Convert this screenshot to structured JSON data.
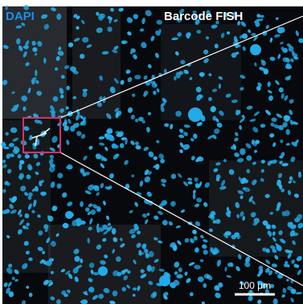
{
  "labels": {
    "stain": "DAPI",
    "probe": "Barcode FISH",
    "scale_bar": "100 μm"
  }
}
